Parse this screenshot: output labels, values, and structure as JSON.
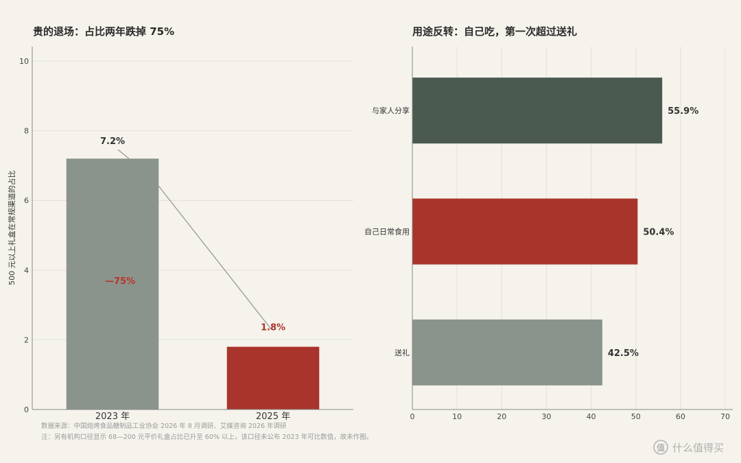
{
  "chart_data": [
    {
      "type": "bar",
      "title": "贵的退场：占比两年跌掉 75%",
      "ylabel": "500 元以上礼盒在常规渠道的占比",
      "categories": [
        "2023 年",
        "2025 年"
      ],
      "values": [
        7.2,
        1.8
      ],
      "value_labels": [
        "7.2%",
        "1.8%"
      ],
      "colors": [
        "#8b938d",
        "#a9342b"
      ],
      "ylim": [
        0,
        10
      ],
      "yticks": [
        0,
        2,
        4,
        6,
        8,
        10
      ],
      "change_annotation": "—75%",
      "grid": "horizontal"
    },
    {
      "type": "bar",
      "orientation": "horizontal",
      "title": "用途反转：自己吃，第一次超过送礼",
      "categories": [
        "与家人分享",
        "自己日常食用",
        "送礼"
      ],
      "values": [
        55.9,
        50.4,
        42.5
      ],
      "value_labels": [
        "55.9%",
        "50.4%",
        "42.5%"
      ],
      "colors": [
        "#4a5a50",
        "#a9342b",
        "#8b938d"
      ],
      "xlim": [
        0,
        70
      ],
      "xticks": [
        0,
        10,
        20,
        30,
        40,
        50,
        60,
        70
      ],
      "grid": "vertical"
    }
  ],
  "footer": {
    "source": "数据来源：中国焙烤食品糖制品工业协会 2026 年 8 月调研、艾媒咨询 2026 年调研",
    "note": "注：另有机构口径显示 68—200 元平价礼盒占比已升至 60% 以上，该口径未公布 2023 年可比数值，故未作图。"
  },
  "watermark": {
    "icon": "smzdm-logo-icon",
    "text": "什么值得买"
  }
}
